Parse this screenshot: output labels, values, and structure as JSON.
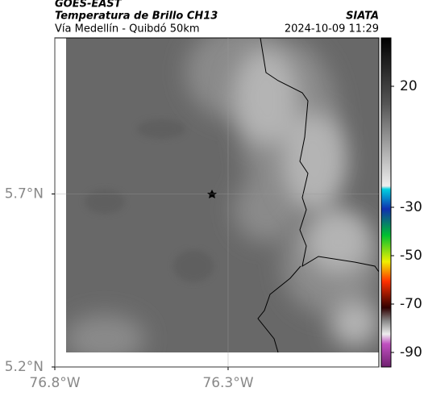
{
  "header": {
    "title": "GOES-EAST",
    "subtitle": "Temperatura de Brillo CH13",
    "route": "Vía Medellín - Quibdó 50km",
    "source": "SIATA",
    "timestamp": "2024-10-09 11:29"
  },
  "map": {
    "xlim": [
      -76.8,
      -75.865
    ],
    "ylim": [
      5.2,
      6.151
    ],
    "xticks": [
      {
        "value": -76.8,
        "label": "76.8°W"
      },
      {
        "value": -76.3,
        "label": "76.3°W"
      }
    ],
    "yticks": [
      {
        "value": 5.7,
        "label": "5.7°N"
      },
      {
        "value": 5.2,
        "label": "5.2°N"
      }
    ],
    "grid": true
  },
  "colorbar": {
    "clim": [
      -96,
      40
    ],
    "ticks": [
      20,
      -30,
      -50,
      -70,
      -90
    ]
  }
}
